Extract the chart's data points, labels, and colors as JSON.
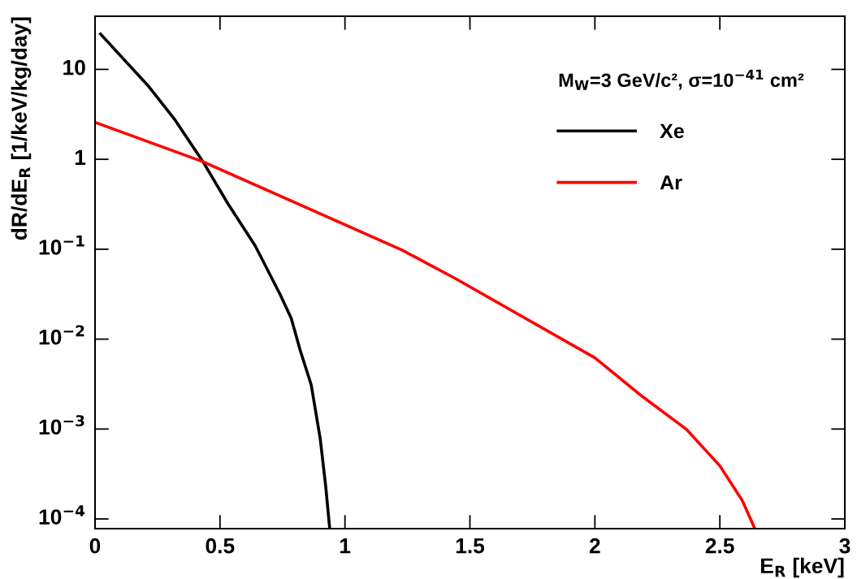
{
  "chart_data": {
    "type": "line",
    "xlabel": "E$_{R}$ [keV]",
    "ylabel": "dR/dE$_{R}$ [1/keV/kg/day]",
    "legend_title": "M$_{W}$=3 GeV/c², σ=10$^{−41}$ cm²",
    "log": "y",
    "xlim": [
      0,
      3
    ],
    "ylim": [
      7.8e-05,
      39
    ],
    "xticks": [
      0,
      0.5,
      1,
      1.5,
      2,
      2.5,
      3
    ],
    "yticks": [
      {
        "value": 0.0001,
        "label": "10$^{−4}$"
      },
      {
        "value": 0.001,
        "label": "10$^{−3}$"
      },
      {
        "value": 0.01,
        "label": "10$^{−2}$"
      },
      {
        "value": 0.1,
        "label": "10$^{−1}$"
      },
      1,
      10
    ],
    "grid": false,
    "legend": "top right",
    "marker": "none",
    "line_style": "solid",
    "series": [
      {
        "name": "Xe",
        "color": "#000000",
        "x": [
          0.022,
          0.212,
          0.32,
          0.432,
          0.532,
          0.641,
          0.74,
          0.785,
          0.821,
          0.865,
          0.901,
          0.923,
          0.939
        ],
        "values": [
          24.7,
          6.6,
          2.74,
          0.94,
          0.32,
          0.109,
          0.0316,
          0.017,
          0.0075,
          0.0031,
          0.00078,
          0.00023,
          7.8e-05
        ]
      },
      {
        "name": "Ar",
        "color": "#ff0000",
        "x": [
          0,
          0.432,
          1.228,
          1.439,
          2.0,
          2.19,
          2.365,
          2.5,
          2.59,
          2.64
        ],
        "values": [
          2.58,
          0.94,
          0.098,
          0.0477,
          0.0062,
          0.0023,
          0.001,
          0.00039,
          0.00016,
          7.8e-05
        ]
      }
    ]
  }
}
